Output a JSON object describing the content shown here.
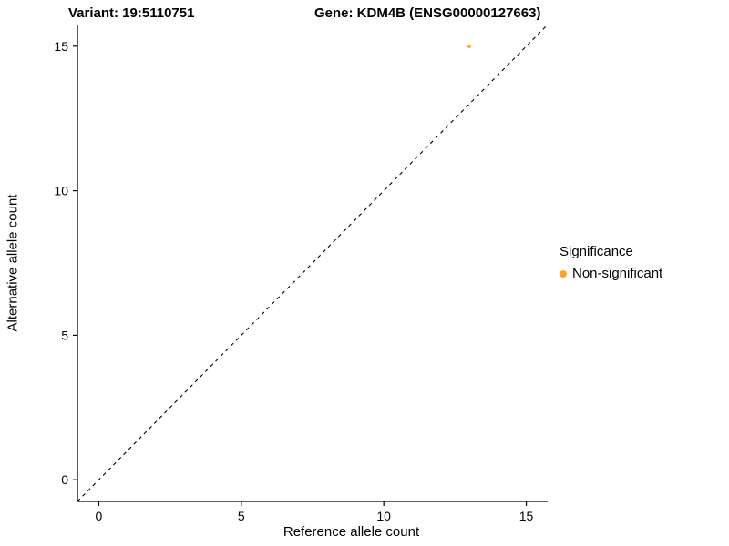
{
  "titles": {
    "left": "Variant: 19:5110751",
    "right": "Gene: KDM4B (ENSG00000127663)"
  },
  "axes": {
    "x_label": "Reference allele count",
    "y_label": "Alternative allele count"
  },
  "legend": {
    "title": "Significance",
    "items": [
      {
        "label": "Non-significant",
        "color": "#FFA526"
      }
    ]
  },
  "chart_data": {
    "type": "scatter",
    "title": "Variant: 19:5110751 / Gene: KDM4B (ENSG00000127663)",
    "xlabel": "Reference allele count",
    "ylabel": "Alternative allele count",
    "xlim": [
      -0.75,
      15.75
    ],
    "ylim": [
      -0.75,
      15.75
    ],
    "xticks": [
      0,
      5,
      10,
      15
    ],
    "yticks": [
      0,
      5,
      10,
      15
    ],
    "grid": false,
    "legend_position": "right",
    "points": [
      {
        "x": 13,
        "y": 15,
        "series": "Non-significant",
        "color": "#FFA526",
        "radius": 2
      }
    ],
    "abline": {
      "slope": 1,
      "intercept": 0,
      "style": "dashed",
      "color": "#000000"
    }
  }
}
